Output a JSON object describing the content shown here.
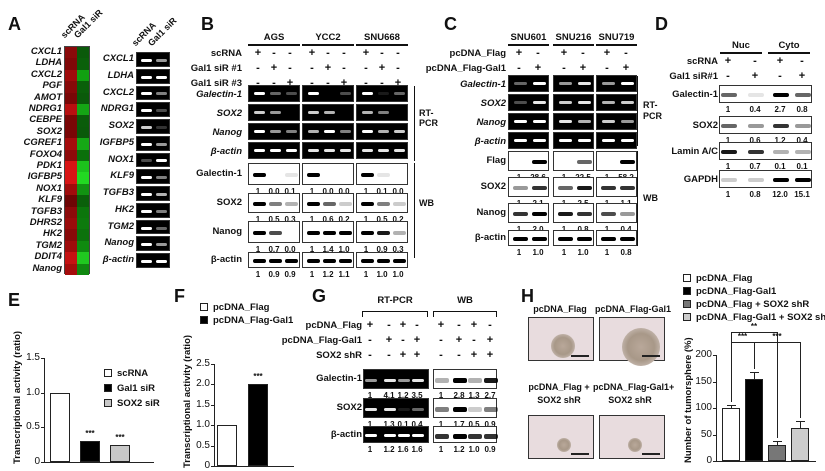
{
  "panels": {
    "A": {
      "label": "A",
      "heatmap_cols": [
        "scRNA",
        "Gal1 siR"
      ],
      "heatmap_genes": [
        "CXCL1",
        "LDHA",
        "CXCL2",
        "PGF",
        "AMOT",
        "NDRG1",
        "CEBPE",
        "SOX2",
        "CGREF1",
        "FOXO4",
        "PDK1",
        "IGFBP5",
        "NOX1",
        "KLF9",
        "TGFB3",
        "DHRS2",
        "HK2",
        "TGM2",
        "DDIT4",
        "Nanog"
      ],
      "heatmap_colors": {
        "scRNA": [
          "#8a0a0a",
          "#800808",
          "#a00c0c",
          "#880909",
          "#7a0707",
          "#b81010",
          "#7a0606",
          "#7a0606",
          "#a50d0d",
          "#8e0a0a",
          "#d81515",
          "#d81515",
          "#a00c0c",
          "#6e0505",
          "#8c0a0a",
          "#9a0b0b",
          "#880909",
          "#9e0b0b",
          "#c51212",
          "#a50d0d"
        ],
        "Gal1 siR": [
          "#0a5a0a",
          "#0a600a",
          "#11a011",
          "#0a600a",
          "#0a5a0a",
          "#15a515",
          "#0a5c0a",
          "#0a5a0a",
          "#16a816",
          "#0b700b",
          "#1cc21c",
          "#22d822",
          "#129212",
          "#0a600a",
          "#0c760c",
          "#0d7a0d",
          "#0c720c",
          "#0f8a0f",
          "#20c820",
          "#108810"
        ]
      },
      "gel_cols": [
        "scRNA",
        "Gal1 siR"
      ],
      "gel_genes": [
        "CXCL1",
        "LDHA",
        "CXCL2",
        "NDRG1",
        "SOX2",
        "IGFBP5",
        "NOX1",
        "KLF9",
        "TGFB3",
        "HK2",
        "TGM2",
        "Nanog",
        "β-actin"
      ]
    },
    "B": {
      "label": "B",
      "cell_lines": [
        "AGS",
        "YCC2",
        "SNU668"
      ],
      "conditions": [
        {
          "name": "scRNA",
          "marks": [
            "+",
            "-",
            "-",
            "+",
            "-",
            "-",
            "+",
            "-",
            "-"
          ]
        },
        {
          "name": "Gal1 siR #1",
          "marks": [
            "-",
            "+",
            "-",
            "-",
            "+",
            "-",
            "-",
            "+",
            "-"
          ]
        },
        {
          "name": "Gal1 siR #3",
          "marks": [
            "-",
            "-",
            "+",
            "-",
            "-",
            "+",
            "-",
            "-",
            "+"
          ]
        }
      ],
      "rtpcr_rows": [
        "Galectin-1",
        "SOX2",
        "Nanog",
        "β-actin"
      ],
      "rtpcr_label": "RT-PCR",
      "wb_label": "WB",
      "wb_rows": [
        {
          "name": "Galectin-1",
          "values": [
            "1",
            "0.0",
            "0.1",
            "1",
            "0.0",
            "0.0",
            "1",
            "0.1",
            "0.0"
          ]
        },
        {
          "name": "SOX2",
          "values": [
            "1",
            "0.5",
            "0.3",
            "1",
            "0.6",
            "0.2",
            "1",
            "0.5",
            "0.2"
          ]
        },
        {
          "name": "Nanog",
          "values": [
            "1",
            "0.7",
            "0.0",
            "1",
            "1.4",
            "1.0",
            "1",
            "0.9",
            "0.3"
          ]
        },
        {
          "name": "β-actin",
          "values": [
            "1",
            "0.9",
            "0.9",
            "1",
            "1.2",
            "1.1",
            "1",
            "1.0",
            "1.0"
          ]
        }
      ]
    },
    "C": {
      "label": "C",
      "cell_lines": [
        "SNU601",
        "SNU216",
        "SNU719"
      ],
      "conditions": [
        {
          "name": "pcDNA_Flag",
          "marks": [
            "+",
            "-",
            "+",
            "-",
            "+",
            "-"
          ]
        },
        {
          "name": "pcDNA_Flag-Gal1",
          "marks": [
            "-",
            "+",
            "-",
            "+",
            "-",
            "+"
          ]
        }
      ],
      "rtpcr_rows": [
        "Galectin-1",
        "SOX2",
        "Nanog",
        "β-actin"
      ],
      "rtpcr_label": "RT-PCR",
      "wb_label": "WB",
      "wb_rows": [
        {
          "name": "Flag",
          "values": [
            "1",
            "28.6",
            "1",
            "22.5",
            "1",
            "58.2"
          ]
        },
        {
          "name": "SOX2",
          "values": [
            "1",
            "2.1",
            "1",
            "2.5",
            "1",
            "1.1"
          ]
        },
        {
          "name": "Nanog",
          "values": [
            "1",
            "2.0",
            "1",
            "0.8",
            "1",
            "0.4"
          ]
        },
        {
          "name": "β-actin",
          "values": [
            "1",
            "1.0",
            "1",
            "1.0",
            "1",
            "0.8"
          ]
        }
      ]
    },
    "D": {
      "label": "D",
      "fractions": [
        "Nuc",
        "Cyto"
      ],
      "conditions": [
        {
          "name": "scRNA",
          "marks": [
            "+",
            "-",
            "+",
            "-"
          ]
        },
        {
          "name": "Gal1 siR#1",
          "marks": [
            "-",
            "+",
            "-",
            "+"
          ]
        }
      ],
      "wb_rows": [
        {
          "name": "Galectin-1",
          "values": [
            "1",
            "0.4",
            "2.7",
            "0.8"
          ]
        },
        {
          "name": "SOX2",
          "values": [
            "1",
            "0.6",
            "1.2",
            "0.4"
          ]
        },
        {
          "name": "Lamin A/C",
          "values": [
            "1",
            "0.7",
            "0.1",
            "0.1"
          ]
        },
        {
          "name": "GAPDH",
          "values": [
            "1",
            "0.8",
            "12.0",
            "15.1"
          ]
        }
      ]
    },
    "E": {
      "label": "E"
    },
    "F": {
      "label": "F"
    },
    "G": {
      "label": "G",
      "groups": [
        "RT-PCR",
        "WB"
      ],
      "conditions": [
        {
          "name": "pcDNA_Flag",
          "marks": [
            "+",
            "-",
            "+",
            "-",
            "+",
            "-",
            "+",
            "-"
          ]
        },
        {
          "name": "pcDNA_Flag-Gal1",
          "marks": [
            "-",
            "+",
            "-",
            "+",
            "-",
            "+",
            "-",
            "+"
          ]
        },
        {
          "name": "SOX2 shR",
          "marks": [
            "-",
            "-",
            "+",
            "+",
            "-",
            "-",
            "+",
            "+"
          ]
        }
      ],
      "rows": [
        {
          "name": "Galectin-1",
          "values": [
            "1",
            "4.1",
            "1.2",
            "3.5",
            "1",
            "2.8",
            "1.3",
            "2.7"
          ]
        },
        {
          "name": "SOX2",
          "values": [
            "1",
            "1.3",
            "0.1",
            "0.4",
            "1",
            "1.7",
            "0.5",
            "0.9"
          ]
        },
        {
          "name": "β-actin",
          "values": [
            "1",
            "1.2",
            "1.6",
            "1.6",
            "1",
            "1.2",
            "1.0",
            "0.9"
          ]
        }
      ]
    },
    "H": {
      "label": "H",
      "photos": [
        {
          "title": "pcDNA_Flag"
        },
        {
          "title": "pcDNA_Flag-Gal1"
        },
        {
          "title": "pcDNA_Flag +\nSOX2 shR",
          "line1": "pcDNA_Flag +",
          "line2": "SOX2 shR"
        },
        {
          "title": "pcDNA_Flag-Gal1+\nSOX2 shR",
          "line1": "pcDNA_Flag-Gal1+",
          "line2": "SOX2 shR"
        }
      ]
    }
  },
  "chart_data": [
    {
      "panel": "E",
      "type": "bar",
      "categories": [
        "scRNA",
        "Gal1 siR",
        "SOX2 siR"
      ],
      "values": [
        1.0,
        0.3,
        0.25
      ],
      "colors": [
        "#ffffff",
        "#000000",
        "#c8c8c8"
      ],
      "significance": [
        "",
        "***",
        "***"
      ],
      "ylabel": "Transcriptional activity (ratio)",
      "yticks": [
        "0",
        "0.5",
        "1.0",
        "1.5"
      ],
      "ylim": [
        0,
        1.5
      ],
      "legend": [
        "scRNA",
        "Gal1 siR",
        "SOX2 siR"
      ],
      "legend_position": "right"
    },
    {
      "panel": "F",
      "type": "bar",
      "categories": [
        "pcDNA_Flag",
        "pcDNA_Flag-Gal1"
      ],
      "values": [
        1.0,
        2.0
      ],
      "colors": [
        "#ffffff",
        "#000000"
      ],
      "significance": [
        "",
        "***"
      ],
      "ylabel": "Transcriptional activity (ratio)",
      "yticks": [
        "0",
        "0.5",
        "1.0",
        "1.5",
        "2.0",
        "2.5"
      ],
      "ylim": [
        0,
        2.5
      ],
      "legend": [
        "pcDNA_Flag",
        "pcDNA_Flag-Gal1"
      ],
      "legend_position": "top"
    },
    {
      "panel": "H",
      "type": "bar",
      "categories": [
        "pcDNA_Flag",
        "pcDNA_Flag-Gal1",
        "pcDNA_Flag + SOX2 shR",
        "pcDNA_Flag-Gal1 + SOX2 shR"
      ],
      "values": [
        100,
        155,
        30,
        63
      ],
      "errors": [
        6,
        13,
        7,
        13
      ],
      "colors": [
        "#ffffff",
        "#000000",
        "#777777",
        "#cccccc"
      ],
      "ylabel": "Number of tumorsphere (%)",
      "yticks": [
        "0",
        "50",
        "100",
        "150",
        "200"
      ],
      "ylim": [
        0,
        200
      ],
      "significance_brackets": [
        {
          "from": 0,
          "to": 1,
          "label": "***"
        },
        {
          "from": 0,
          "to": 2,
          "label": "**"
        },
        {
          "from": 1,
          "to": 3,
          "label": "***"
        }
      ],
      "legend": [
        "pcDNA_Flag",
        "pcDNA_Flag-Gal1",
        "pcDNA_Flag + SOX2 shR",
        "pcDNA_Flag-Gal1 + SOX2 shR"
      ],
      "legend_position": "top"
    }
  ]
}
